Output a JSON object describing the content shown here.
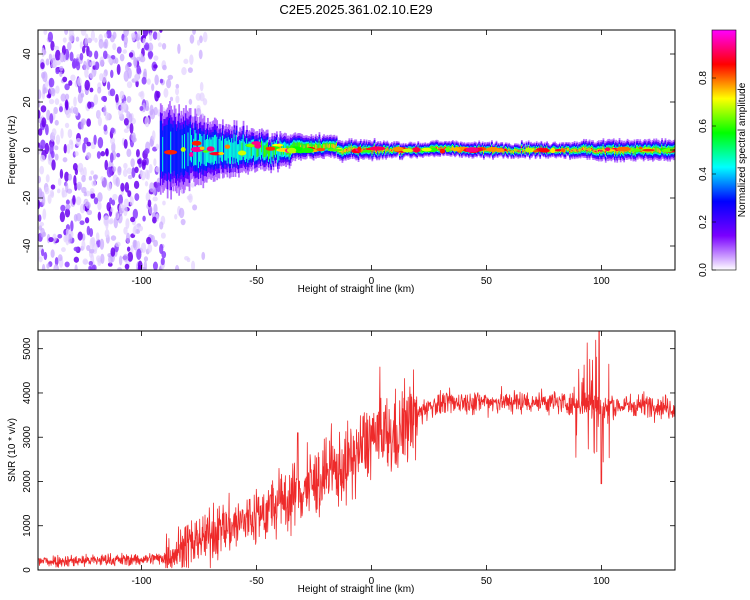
{
  "title": "C2E5.2025.361.02.10.E29",
  "chart_data": [
    {
      "type": "heatmap",
      "xlabel": "Height of straight line (km)",
      "ylabel": "Frequency (Hz)",
      "xlim": [
        -145,
        132
      ],
      "ylim": [
        -50,
        50
      ],
      "x_ticks": [
        -100,
        -50,
        0,
        50,
        100
      ],
      "y_ticks": [
        -40,
        -20,
        0,
        20,
        40
      ],
      "colorbar": {
        "label": "Normalized spectral amplitude",
        "range": [
          0,
          1
        ],
        "ticks": [
          "0.0",
          "0.2",
          "0.4",
          "0.6",
          "0.8"
        ],
        "colors": [
          "#ffffff",
          "#7a00ff",
          "#0000ff",
          "#00ffff",
          "#00ff00",
          "#ffff00",
          "#ff0000",
          "#ff00ff"
        ]
      },
      "band_profile": [
        {
          "x": -88,
          "width": 18,
          "amp": 0.35
        },
        {
          "x": -70,
          "width": 12,
          "amp": 0.45
        },
        {
          "x": -50,
          "width": 8,
          "amp": 0.5
        },
        {
          "x": -30,
          "width": 5,
          "amp": 0.65
        },
        {
          "x": -10,
          "width": 4,
          "amp": 0.8
        },
        {
          "x": 10,
          "width": 3,
          "amp": 0.85
        },
        {
          "x": 40,
          "width": 3,
          "amp": 0.85
        },
        {
          "x": 80,
          "width": 3,
          "amp": 0.8
        },
        {
          "x": 100,
          "width": 4,
          "amp": 0.85
        },
        {
          "x": 132,
          "width": 4,
          "amp": 0.75
        }
      ],
      "noise_region_max_x": -90
    },
    {
      "type": "line",
      "xlabel": "Height of straight line (km)",
      "ylabel": "SNR (10 * v/v)",
      "xlim": [
        -145,
        132
      ],
      "ylim": [
        0,
        5400
      ],
      "x_ticks": [
        -100,
        -50,
        0,
        50,
        100
      ],
      "y_ticks": [
        0,
        1000,
        2000,
        3000,
        4000,
        5000
      ],
      "color": "#ee2a2a",
      "series": [
        {
          "x": [
            -145,
            -120,
            -100,
            -90,
            -80,
            -70,
            -60,
            -50,
            -40,
            -30,
            -20,
            -10,
            0,
            10,
            15,
            20,
            25,
            30,
            40,
            50,
            60,
            70,
            80,
            88,
            92,
            96,
            100,
            104,
            110,
            120,
            132
          ],
          "values": [
            200,
            220,
            240,
            280,
            550,
            800,
            1000,
            1200,
            1500,
            1800,
            2100,
            2400,
            3000,
            3000,
            3300,
            3500,
            3700,
            3750,
            3800,
            3800,
            3800,
            3800,
            3800,
            3750,
            3700,
            3800,
            3700,
            3700,
            3700,
            3750,
            3650
          ]
        }
      ]
    }
  ]
}
